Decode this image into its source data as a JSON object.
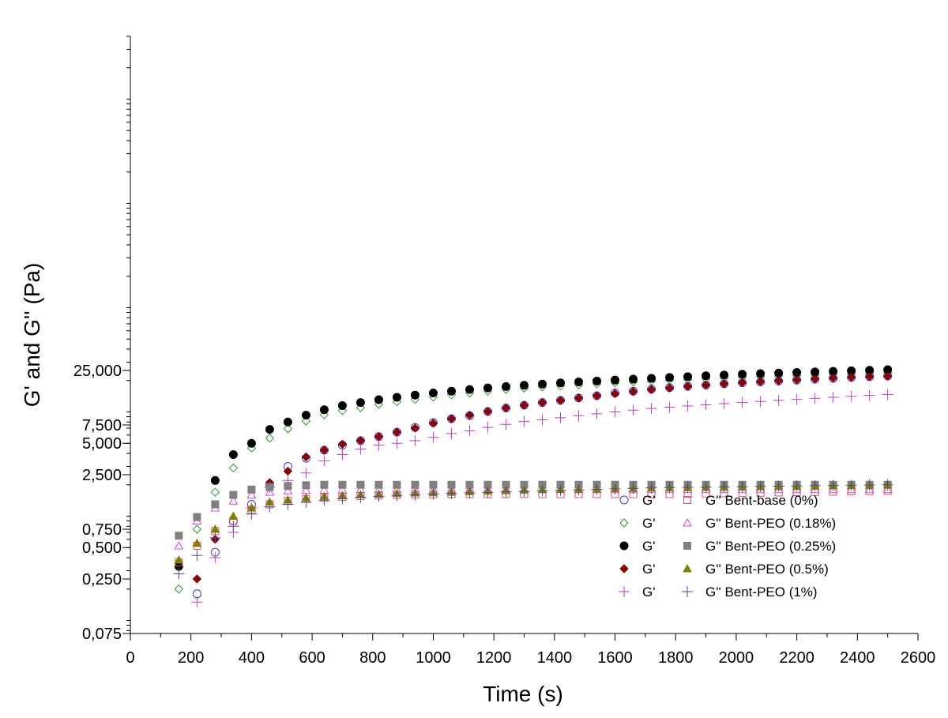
{
  "chart_data": {
    "type": "scatter",
    "xlabel": "Time (s)",
    "ylabel": "G' and G'' (Pa)",
    "x_scale": "linear",
    "y_scale": "log",
    "xlim": [
      0,
      2600
    ],
    "ylim": [
      0.075,
      40000
    ],
    "x_ticks": [
      0,
      200,
      400,
      600,
      800,
      1000,
      1200,
      1400,
      1600,
      1800,
      2000,
      2200,
      2400,
      2600
    ],
    "x_tick_labels": [
      "0",
      "200",
      "400",
      "600",
      "800",
      "1000",
      "1200",
      "1400",
      "1600",
      "1800",
      "2000",
      "2200",
      "2400",
      "2600"
    ],
    "y_ticks": [
      0.075,
      0.25,
      0.5,
      0.75,
      2.5,
      5,
      7.5,
      25
    ],
    "y_tick_labels": [
      "0,075",
      "0,250",
      "0,500",
      "0,750",
      "2,500",
      "5,000",
      "7,500",
      "25,000"
    ],
    "grid": false,
    "legend_position": "bottom-right",
    "legend": [
      {
        "label": "G'",
        "marker": "circle-open",
        "color": "#3b3bd6",
        "series": 0
      },
      {
        "label": "G''",
        "suffix": "Bent-base (0%)",
        "marker": "square-open",
        "color": "#e8506a",
        "series": 5
      },
      {
        "label": "G'",
        "marker": "diamond-open",
        "color": "#2e9a2e",
        "series": 1
      },
      {
        "label": "G''",
        "suffix": "Bent-PEO (0.18%)",
        "marker": "triangle-open",
        "color": "#e040e0",
        "series": 6
      },
      {
        "label": "G'",
        "marker": "circle-filled",
        "color": "#000000",
        "series": 2
      },
      {
        "label": "G''",
        "suffix": "Bent-PEO (0.25%)",
        "marker": "square-filled",
        "color": "#808080",
        "series": 7
      },
      {
        "label": "G'",
        "marker": "diamond-filled",
        "color": "#8b0000",
        "series": 3
      },
      {
        "label": "G''",
        "suffix": "Bent-PEO (0.5%)",
        "marker": "triangle-filled",
        "color": "#808000",
        "series": 8
      },
      {
        "label": "G'",
        "marker": "plus",
        "color": "#c040c0",
        "series": 4
      },
      {
        "label": "G''",
        "suffix": "Bent-PEO (1%)",
        "marker": "plus",
        "color": "#4a4aa0",
        "series": 9
      }
    ],
    "series": [
      {
        "marker": "circle-open",
        "color": "#3b3bd6",
        "x": [
          220,
          280,
          340,
          400,
          460,
          520,
          580,
          640,
          700,
          760,
          820,
          880,
          940,
          1000,
          1060,
          1120,
          1180,
          1240,
          1300,
          1360,
          1420,
          1480,
          1540,
          1600,
          1660,
          1720,
          1780,
          1840,
          1900,
          1960,
          2020,
          2080,
          2140,
          2200,
          2260,
          2320,
          2380,
          2440,
          2500
        ],
        "y": [
          0.18,
          0.45,
          0.9,
          1.3,
          2,
          3,
          3.6,
          4.3,
          4.8,
          5.3,
          5.8,
          6.4,
          7.1,
          7.9,
          8.6,
          9.2,
          10.1,
          10.9,
          11.6,
          12.3,
          12.9,
          13.6,
          14.3,
          15.2,
          15.8,
          16.5,
          17.1,
          17.6,
          18.1,
          18.6,
          19,
          19.4,
          19.8,
          20.2,
          20.6,
          21,
          21.4,
          21.8,
          22.1
        ]
      },
      {
        "marker": "diamond-open",
        "color": "#2e9a2e",
        "x": [
          160,
          220,
          280,
          340,
          400,
          460,
          520,
          580,
          640,
          700,
          760,
          820,
          880,
          940,
          1000,
          1060,
          1120,
          1180,
          1240,
          1300,
          1360,
          1420,
          1480,
          1540,
          1600,
          1660,
          1720,
          1780,
          1840,
          1900,
          1960,
          2020,
          2080,
          2140,
          2200,
          2260,
          2320,
          2380,
          2440,
          2500
        ],
        "y": [
          0.2,
          0.75,
          1.7,
          2.9,
          4.5,
          5.6,
          6.9,
          8.2,
          9.4,
          10.3,
          11.0,
          11.8,
          12.5,
          13.2,
          13.9,
          14.6,
          15.2,
          15.8,
          16.4,
          16.9,
          17.4,
          17.8,
          18.2,
          18.6,
          19.0,
          19.4,
          19.8,
          20.2,
          20.5,
          20.8,
          21.1,
          21.4,
          21.7,
          22.0,
          22.3,
          22.6,
          22.9,
          23.2,
          23.5,
          23.8
        ]
      },
      {
        "marker": "circle-filled",
        "color": "#000000",
        "x": [
          160,
          280,
          340,
          400,
          460,
          520,
          580,
          640,
          700,
          760,
          820,
          880,
          940,
          1000,
          1060,
          1120,
          1180,
          1240,
          1300,
          1360,
          1420,
          1480,
          1540,
          1600,
          1660,
          1720,
          1780,
          1840,
          1900,
          1960,
          2020,
          2080,
          2140,
          2200,
          2260,
          2320,
          2380,
          2440,
          2500
        ],
        "y": [
          0.33,
          2.2,
          3.9,
          5.0,
          6.8,
          8.0,
          9.3,
          10.5,
          11.5,
          12.3,
          13.1,
          13.8,
          14.5,
          15.2,
          15.8,
          16.4,
          17.0,
          17.5,
          18.0,
          18.5,
          19.0,
          19.4,
          19.8,
          20.2,
          20.6,
          21.0,
          21.4,
          21.8,
          22.2,
          22.6,
          23.0,
          23.3,
          23.6,
          23.9,
          24.2,
          24.5,
          24.8,
          25.1,
          25.4
        ]
      },
      {
        "marker": "diamond-filled",
        "color": "#8b0000",
        "x": [
          220,
          280,
          460,
          520,
          580,
          640,
          700,
          760,
          820,
          880,
          940,
          1000,
          1060,
          1120,
          1180,
          1240,
          1300,
          1360,
          1420,
          1480,
          1540,
          1600,
          1660,
          1720,
          1780,
          1840,
          1900,
          1960,
          2020,
          2080,
          2140,
          2200,
          2260,
          2320,
          2380,
          2440,
          2500
        ],
        "y": [
          0.25,
          0.6,
          2.1,
          2.7,
          3.7,
          4.3,
          4.9,
          5.3,
          5.8,
          6.4,
          7.0,
          7.8,
          8.6,
          9.3,
          10.1,
          10.9,
          11.6,
          12.3,
          12.9,
          13.6,
          14.3,
          15.0,
          15.7,
          16.4,
          17.0,
          17.6,
          18.1,
          18.6,
          19.1,
          19.5,
          19.9,
          20.3,
          20.7,
          21.1,
          21.5,
          21.8,
          22.0
        ]
      },
      {
        "marker": "plus",
        "color": "#c040c0",
        "x": [
          220,
          280,
          340,
          400,
          460,
          520,
          580,
          640,
          700,
          760,
          820,
          880,
          940,
          1000,
          1060,
          1120,
          1180,
          1240,
          1300,
          1360,
          1420,
          1480,
          1540,
          1600,
          1660,
          1720,
          1780,
          1840,
          1900,
          1960,
          2020,
          2080,
          2140,
          2200,
          2260,
          2320,
          2380,
          2440,
          2500
        ],
        "y": [
          0.15,
          0.4,
          0.7,
          1.2,
          1.9,
          2.2,
          2.6,
          3.4,
          3.9,
          4.4,
          4.8,
          5.0,
          5.3,
          5.7,
          6.2,
          6.6,
          7.1,
          7.6,
          8.1,
          8.4,
          8.8,
          9.2,
          9.6,
          10.0,
          10.4,
          10.8,
          11.1,
          11.4,
          11.7,
          12.0,
          12.3,
          12.6,
          12.9,
          13.2,
          13.5,
          13.8,
          14.1,
          14.4,
          14.7
        ]
      },
      {
        "marker": "square-open",
        "color": "#e8506a",
        "x": [
          160,
          220,
          280,
          340,
          400,
          460,
          520,
          580,
          640,
          700,
          760,
          820,
          880,
          940,
          1000,
          1060,
          1120,
          1180,
          1240,
          1300,
          1360,
          1420,
          1480,
          1540,
          1600,
          1660,
          1720,
          1780,
          1840,
          1900,
          1960,
          2020,
          2080,
          2140,
          2200,
          2260,
          2320,
          2380,
          2440,
          2500
        ],
        "y": [
          0.36,
          0.52,
          0.72,
          0.9,
          1.15,
          1.3,
          1.4,
          1.46,
          1.5,
          1.53,
          1.56,
          1.58,
          1.6,
          1.61,
          1.62,
          1.63,
          1.63,
          1.63,
          1.63,
          1.63,
          1.63,
          1.63,
          1.63,
          1.63,
          1.63,
          1.63,
          1.63,
          1.63,
          1.64,
          1.65,
          1.66,
          1.67,
          1.68,
          1.69,
          1.7,
          1.71,
          1.72,
          1.73,
          1.74,
          1.75
        ]
      },
      {
        "marker": "triangle-open",
        "color": "#e040e0",
        "x": [
          160,
          220,
          280,
          340,
          400,
          460,
          520,
          580,
          640,
          700,
          760,
          820,
          880,
          940,
          1000,
          1060,
          1120,
          1180,
          1240,
          1300,
          1360,
          1420,
          1480,
          1540,
          1600,
          1660,
          1720,
          1780,
          1840,
          1900,
          1960,
          2020,
          2080,
          2140,
          2200,
          2260,
          2320,
          2380,
          2440,
          2500
        ],
        "y": [
          0.52,
          0.9,
          1.2,
          1.4,
          1.6,
          1.7,
          1.75,
          1.77,
          1.78,
          1.79,
          1.8,
          1.8,
          1.8,
          1.8,
          1.8,
          1.8,
          1.8,
          1.8,
          1.8,
          1.8,
          1.8,
          1.8,
          1.8,
          1.8,
          1.8,
          1.8,
          1.8,
          1.8,
          1.8,
          1.8,
          1.8,
          1.8,
          1.8,
          1.8,
          1.8,
          1.8,
          1.8,
          1.8,
          1.8,
          1.8
        ]
      },
      {
        "marker": "square-filled",
        "color": "#808080",
        "x": [
          160,
          220,
          280,
          340,
          400,
          460,
          520,
          580,
          640,
          700,
          760,
          820,
          880,
          940,
          1000,
          1060,
          1120,
          1180,
          1240,
          1300,
          1360,
          1420,
          1480,
          1540,
          1600,
          1660,
          1720,
          1780,
          1840,
          1900,
          1960,
          2020,
          2080,
          2140,
          2200,
          2260,
          2320,
          2380,
          2440,
          2500
        ],
        "y": [
          0.65,
          0.98,
          1.3,
          1.6,
          1.8,
          1.9,
          1.95,
          1.98,
          2.0,
          2.0,
          2.0,
          2.0,
          2.0,
          2.0,
          2.0,
          2.0,
          2.0,
          2.0,
          2.0,
          2.0,
          2.0,
          2.0,
          2.0,
          2.0,
          2.0,
          2.0,
          2.0,
          2.0,
          2.0,
          2.0,
          2.0,
          2.0,
          2.0,
          2.0,
          2.0,
          2.0,
          2.0,
          2.0,
          2.0,
          2.0
        ]
      },
      {
        "marker": "triangle-filled",
        "color": "#808000",
        "x": [
          160,
          220,
          280,
          340,
          400,
          460,
          520,
          580,
          640,
          700,
          760,
          820,
          880,
          940,
          1000,
          1060,
          1120,
          1180,
          1240,
          1300,
          1360,
          1420,
          1480,
          1540,
          1600,
          1660,
          1720,
          1780,
          1840,
          1900,
          1960,
          2020,
          2080,
          2140,
          2200,
          2260,
          2320,
          2380,
          2440,
          2500
        ],
        "y": [
          0.38,
          0.55,
          0.75,
          1.0,
          1.2,
          1.37,
          1.43,
          1.5,
          1.55,
          1.58,
          1.61,
          1.63,
          1.65,
          1.67,
          1.68,
          1.7,
          1.72,
          1.74,
          1.76,
          1.78,
          1.8,
          1.81,
          1.82,
          1.83,
          1.84,
          1.85,
          1.86,
          1.87,
          1.88,
          1.89,
          1.9,
          1.91,
          1.92,
          1.93,
          1.94,
          1.95,
          1.96,
          1.97,
          1.98,
          2.0
        ]
      },
      {
        "marker": "plus",
        "color": "#4a4aa0",
        "x": [
          160,
          220,
          280,
          340,
          400,
          460,
          520,
          580,
          640,
          700,
          760,
          820,
          880,
          940,
          1000,
          1060,
          1120,
          1180,
          1240,
          1300,
          1360,
          1420,
          1480,
          1540,
          1600,
          1660,
          1720,
          1780,
          1840,
          1900,
          1960,
          2020,
          2080,
          2140,
          2200,
          2260,
          2320,
          2380,
          2440,
          2500
        ],
        "y": [
          0.28,
          0.42,
          0.62,
          0.8,
          1.05,
          1.23,
          1.3,
          1.36,
          1.42,
          1.47,
          1.52,
          1.55,
          1.58,
          1.61,
          1.63,
          1.65,
          1.67,
          1.69,
          1.71,
          1.73,
          1.75,
          1.77,
          1.79,
          1.81,
          1.83,
          1.85,
          1.87,
          1.88,
          1.89,
          1.9,
          1.91,
          1.92,
          1.93,
          1.94,
          1.95,
          1.96,
          1.97,
          1.98,
          1.99,
          2.0
        ]
      }
    ]
  }
}
